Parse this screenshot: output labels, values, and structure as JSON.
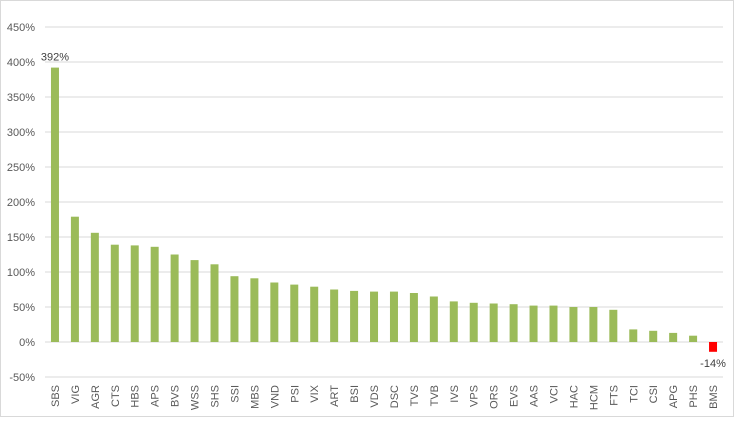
{
  "chart_data": {
    "type": "bar",
    "title": "",
    "xlabel": "",
    "ylabel": "",
    "ylim": [
      -50,
      450
    ],
    "y_ticks": [
      -50,
      0,
      50,
      100,
      150,
      200,
      250,
      300,
      350,
      400,
      450
    ],
    "y_tick_suffix": "%",
    "grid": true,
    "legend": "none",
    "categories": [
      "SBS",
      "VIG",
      "AGR",
      "CTS",
      "HBS",
      "APS",
      "BVS",
      "WSS",
      "SHS",
      "SSI",
      "MBS",
      "VND",
      "PSI",
      "VIX",
      "ART",
      "BSI",
      "VDS",
      "DSC",
      "TVS",
      "TVB",
      "IVS",
      "VPS",
      "ORS",
      "EVS",
      "AAS",
      "VCI",
      "HAC",
      "HCM",
      "FTS",
      "TCI",
      "CSI",
      "APG",
      "PHS",
      "BMS"
    ],
    "values": [
      392,
      179,
      156,
      139,
      138,
      136,
      125,
      117,
      111,
      94,
      91,
      85,
      82,
      79,
      75,
      73,
      72,
      72,
      70,
      65,
      58,
      56,
      55,
      54,
      52,
      52,
      50,
      50,
      46,
      18,
      16,
      13,
      9,
      -14
    ],
    "data_labels": [
      {
        "category": "SBS",
        "text": "392%"
      },
      {
        "category": "BMS",
        "text": "-14%"
      }
    ],
    "colors": {
      "positive": "#9bbb59",
      "negative": "#ff0000",
      "grid": "#d9d9d9",
      "axis_text": "#595959"
    }
  }
}
